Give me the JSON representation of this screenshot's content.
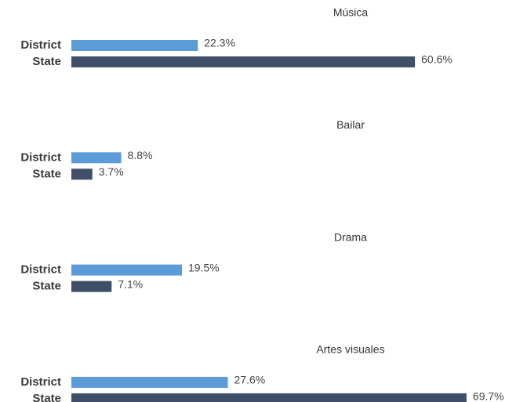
{
  "chart_data": [
    {
      "type": "bar",
      "title": "Música",
      "categories": [
        "District",
        "State"
      ],
      "values": [
        22.3,
        60.6
      ],
      "value_labels": [
        "22.3%",
        "60.6%"
      ],
      "colors": [
        "#5b9bd8",
        "#3f4f68"
      ]
    },
    {
      "type": "bar",
      "title": "Bailar",
      "categories": [
        "District",
        "State"
      ],
      "values": [
        8.8,
        3.7
      ],
      "value_labels": [
        "8.8%",
        "3.7%"
      ],
      "colors": [
        "#5b9bd8",
        "#3f4f68"
      ]
    },
    {
      "type": "bar",
      "title": "Drama",
      "categories": [
        "District",
        "State"
      ],
      "values": [
        19.5,
        7.1
      ],
      "value_labels": [
        "19.5%",
        "7.1%"
      ],
      "colors": [
        "#5b9bd8",
        "#3f4f68"
      ]
    },
    {
      "type": "bar",
      "title": "Artes visuales",
      "categories": [
        "District",
        "State"
      ],
      "values": [
        27.6,
        69.7
      ],
      "value_labels": [
        "27.6%",
        "69.7%"
      ],
      "colors": [
        "#5b9bd8",
        "#3f4f68"
      ]
    }
  ]
}
